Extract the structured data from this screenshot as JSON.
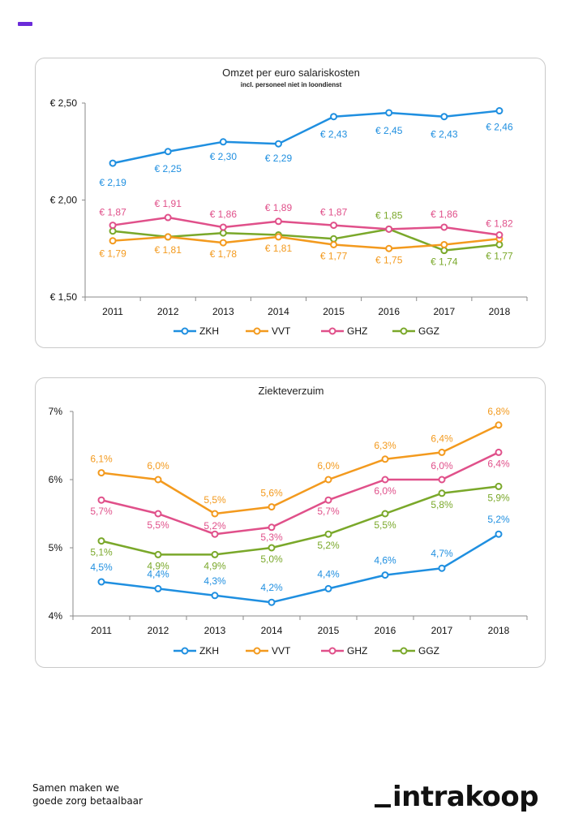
{
  "chart_data": [
    {
      "type": "line",
      "title": "Omzet per euro salariskosten",
      "subtitle": "incl. personeel niet in loondienst",
      "categories": [
        "2011",
        "2012",
        "2013",
        "2014",
        "2015",
        "2016",
        "2017",
        "2018"
      ],
      "y_ticks": [
        "€ 2,50",
        "€ 2,00",
        "€ 1,50"
      ],
      "ylim": [
        1.5,
        2.5
      ],
      "grid": false,
      "legend": "bottom",
      "series": [
        {
          "name": "ZKH",
          "color": "#1f8fe0",
          "values": [
            2.19,
            2.25,
            2.3,
            2.29,
            2.43,
            2.45,
            2.43,
            2.46
          ],
          "labels": [
            "€ 2,19",
            "€ 2,25",
            "€ 2,30",
            "€ 2,29",
            "€ 2,43",
            "€ 2,45",
            "€ 2,43",
            "€ 2,46"
          ]
        },
        {
          "name": "VVT",
          "color": "#f39a1e",
          "values": [
            1.79,
            1.81,
            1.78,
            1.81,
            1.77,
            1.75,
            1.77,
            1.8
          ],
          "labels": [
            "€ 1,79",
            "€ 1,81",
            "€ 1,78",
            "€ 1,81",
            "€ 1,77",
            "€ 1,75",
            "",
            ""
          ]
        },
        {
          "name": "GHZ",
          "color": "#e0508a",
          "values": [
            1.87,
            1.91,
            1.86,
            1.89,
            1.87,
            1.85,
            1.86,
            1.82
          ],
          "labels": [
            "€ 1,87",
            "€ 1,91",
            "€ 1,86",
            "€ 1,89",
            "€ 1,87",
            "",
            "€ 1,86",
            "€ 1,82"
          ]
        },
        {
          "name": "GGZ",
          "color": "#7aa82a",
          "values": [
            1.84,
            1.81,
            1.83,
            1.82,
            1.8,
            1.85,
            1.74,
            1.77
          ],
          "labels": [
            "",
            "",
            "",
            "",
            "",
            "€ 1,85",
            "€ 1,74",
            "€ 1,77"
          ]
        }
      ]
    },
    {
      "type": "line",
      "title": "Ziekteverzuim",
      "categories": [
        "2011",
        "2012",
        "2013",
        "2014",
        "2015",
        "2016",
        "2017",
        "2018"
      ],
      "y_ticks": [
        "7%",
        "6%",
        "5%",
        "4%"
      ],
      "ylim": [
        4,
        7
      ],
      "grid": false,
      "legend": "bottom",
      "series": [
        {
          "name": "ZKH",
          "color": "#1f8fe0",
          "values": [
            4.5,
            4.4,
            4.3,
            4.2,
            4.4,
            4.6,
            4.7,
            5.2
          ],
          "labels": [
            "4,5%",
            "4,4%",
            "4,3%",
            "4,2%",
            "4,4%",
            "4,6%",
            "4,7%",
            "5,2%"
          ]
        },
        {
          "name": "VVT",
          "color": "#f39a1e",
          "values": [
            6.1,
            6.0,
            5.5,
            5.6,
            6.0,
            6.3,
            6.4,
            6.8
          ],
          "labels": [
            "6,1%",
            "6,0%",
            "5,5%",
            "5,6%",
            "6,0%",
            "6,3%",
            "6,4%",
            "6,8%"
          ]
        },
        {
          "name": "GHZ",
          "color": "#e0508a",
          "values": [
            5.7,
            5.5,
            5.2,
            5.3,
            5.7,
            6.0,
            6.0,
            6.4
          ],
          "labels": [
            "5,7%",
            "5,5%",
            "5,2%",
            "5,3%",
            "5,7%",
            "6,0%",
            "6,0%",
            "6,4%"
          ]
        },
        {
          "name": "GGZ",
          "color": "#7aa82a",
          "values": [
            5.1,
            4.9,
            4.9,
            5.0,
            5.2,
            5.5,
            5.8,
            5.9
          ],
          "labels": [
            "5,1%",
            "4,9%",
            "4,9%",
            "5,0%",
            "5,2%",
            "5,5%",
            "5,8%",
            "5,9%"
          ]
        }
      ]
    }
  ],
  "footer": {
    "tagline_line1": "Samen maken we",
    "tagline_line2": "goede zorg betaalbaar",
    "logo_text": "intrakoop"
  },
  "colors": {
    "accent": "#6b2bd9"
  }
}
